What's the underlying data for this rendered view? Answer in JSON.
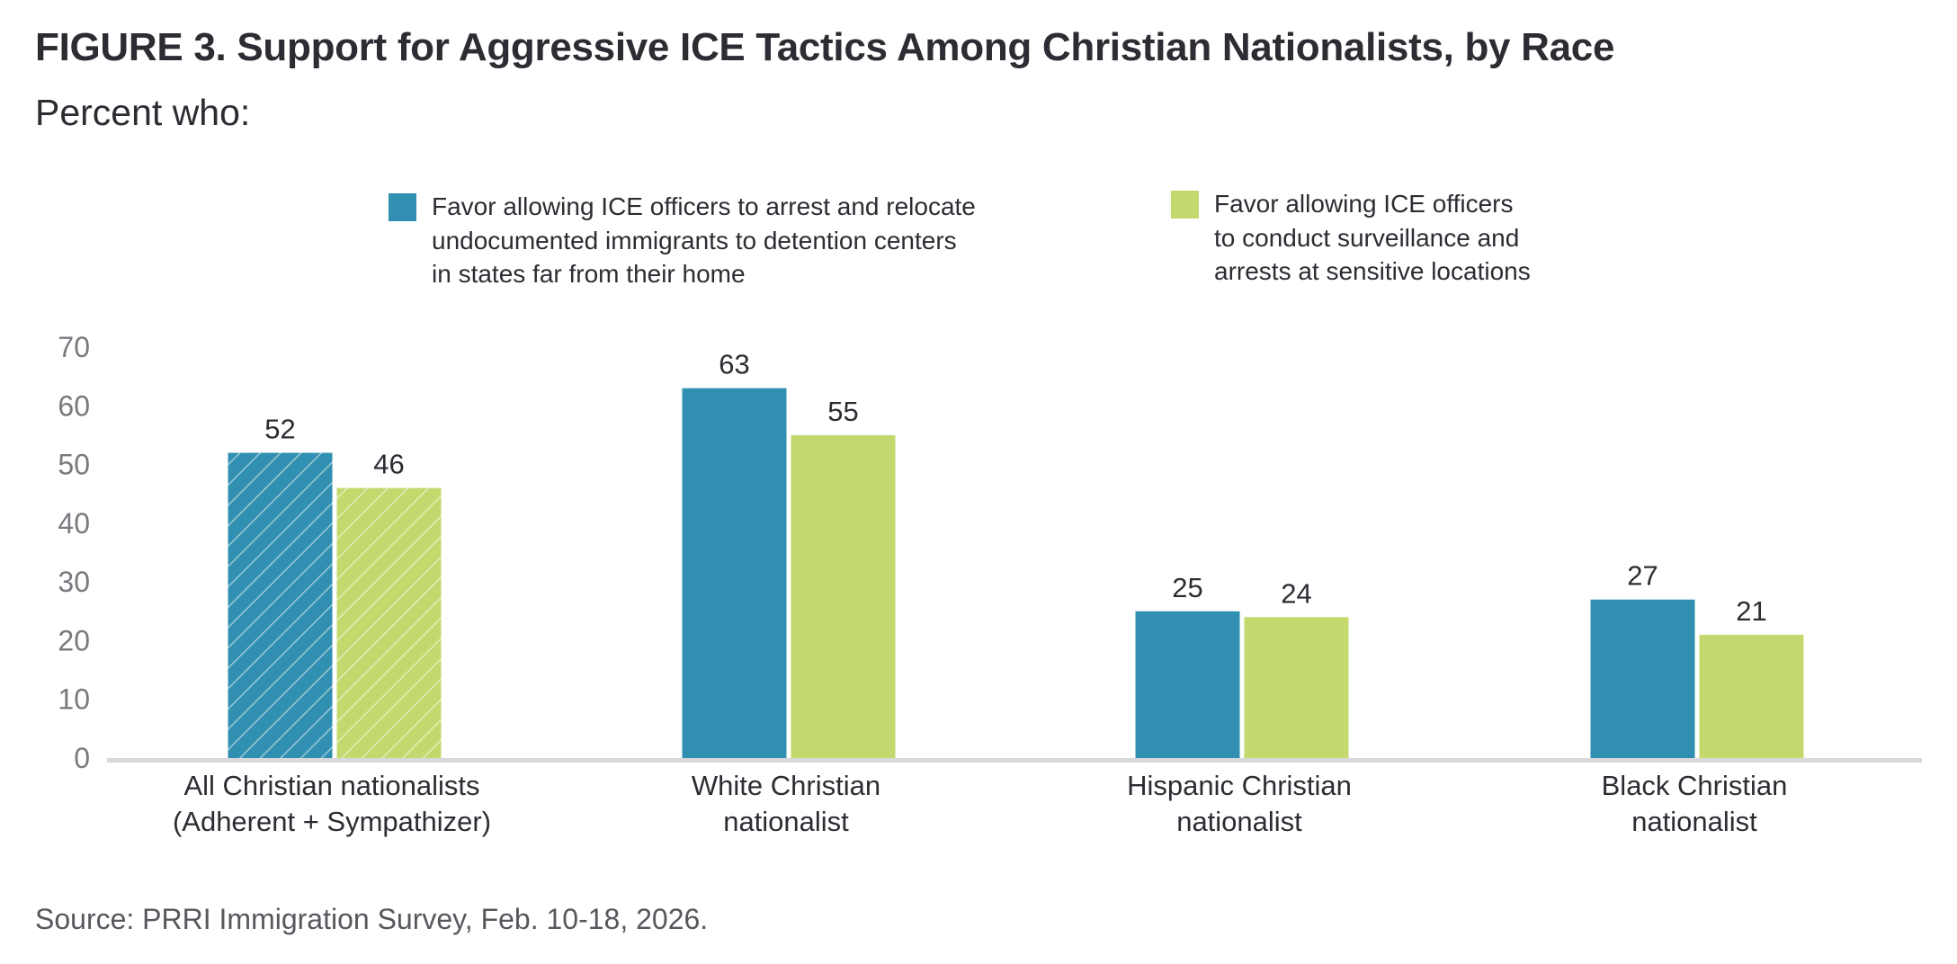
{
  "header": {
    "title": "FIGURE 3.  Support for Aggressive ICE Tactics Among Christian Nationalists, by Race",
    "subtitle": "Percent who:"
  },
  "legend": [
    {
      "label": "Favor allowing ICE officers to arrest and relocate\nundocumented immigrants to detention centers\nin states far from their home",
      "color": "#3190b1"
    },
    {
      "label": "Favor allowing ICE officers\nto conduct surveillance and\narrests at sensitive locations",
      "color": "#c3d96e"
    }
  ],
  "footer": {
    "source": "Source: PRRI Immigration Survey, Feb. 10-18, 2026."
  },
  "chart_data": {
    "type": "bar",
    "title": "FIGURE 3.  Support for Aggressive ICE Tactics Among Christian Nationalists, by Race",
    "subtitle": "Percent who:",
    "xlabel": "",
    "ylabel": "",
    "ylim": [
      0,
      70
    ],
    "yticks": [
      0,
      10,
      20,
      30,
      40,
      50,
      60,
      70
    ],
    "grid": false,
    "legend_position": "top",
    "categories": [
      [
        "All Christian nationalists",
        "(Adherent + Sympathizer)"
      ],
      [
        "White Christian",
        "nationalist"
      ],
      [
        "Hispanic Christian",
        "nationalist"
      ],
      [
        "Black Christian",
        "nationalist"
      ]
    ],
    "hatched_categories": [
      0
    ],
    "series": [
      {
        "name": "Favor allowing ICE officers to arrest and relocate undocumented immigrants to detention centers in states far from their home",
        "color": "#3190b1",
        "values": [
          52,
          63,
          25,
          27
        ]
      },
      {
        "name": "Favor allowing ICE officers to conduct surveillance and arrests at sensitive locations",
        "color": "#c3d96e",
        "values": [
          46,
          55,
          24,
          21
        ]
      }
    ],
    "axis_color": "#d9d9db",
    "tick_color": "#777a7e"
  }
}
